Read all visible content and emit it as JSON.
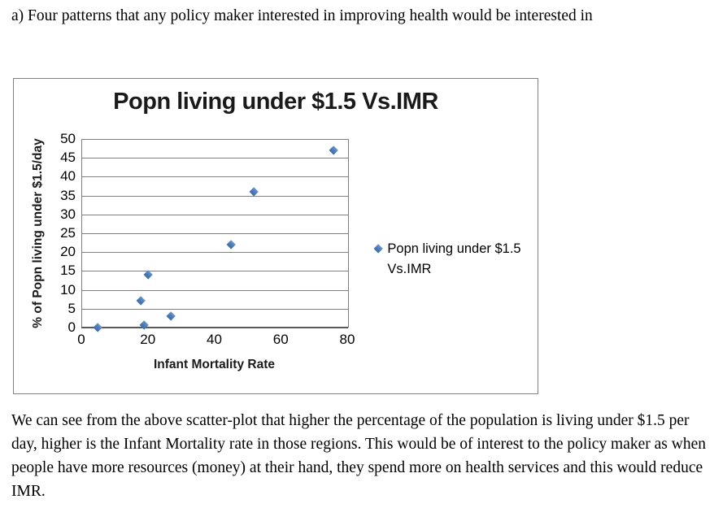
{
  "document": {
    "heading": "a) Four patterns that any policy maker interested in improving health would be interested in",
    "paragraph": "We can see from the above scatter-plot that higher the percentage of the population is living under $1.5 per day, higher is the Infant Mortality rate in those regions. This would be of interest to the policy maker as when people have more resources (money) at their hand, they spend more on health services and this would reduce IMR."
  },
  "chart_data": {
    "type": "scatter",
    "title": "Popn living under $1.5 Vs.IMR",
    "xlabel": "Infant Mortality Rate",
    "ylabel": "% of Popn living under $1.5/day",
    "xlim": [
      0,
      80
    ],
    "ylim": [
      0,
      50
    ],
    "x_ticks": [
      0,
      20,
      40,
      60,
      80
    ],
    "y_ticks": [
      0,
      5,
      10,
      15,
      20,
      25,
      30,
      35,
      40,
      45,
      50
    ],
    "grid": true,
    "legend_position": "right",
    "series": [
      {
        "name": "Popn living under $1.5 Vs.IMR",
        "marker": "diamond",
        "points": [
          {
            "x": 5,
            "y": 0
          },
          {
            "x": 18,
            "y": 7
          },
          {
            "x": 19,
            "y": 0.5
          },
          {
            "x": 20,
            "y": 14
          },
          {
            "x": 27,
            "y": 3
          },
          {
            "x": 45,
            "y": 22
          },
          {
            "x": 52,
            "y": 36
          },
          {
            "x": 76,
            "y": 47
          }
        ]
      }
    ],
    "legend_lines": {
      "line1": "Popn living under $1.5",
      "line2": "Vs.IMR"
    },
    "colors": {
      "marker": "#4c7fbe",
      "gridline": "#7f7f7f",
      "axis_line": "#595959",
      "chart_border": "#808080"
    }
  }
}
